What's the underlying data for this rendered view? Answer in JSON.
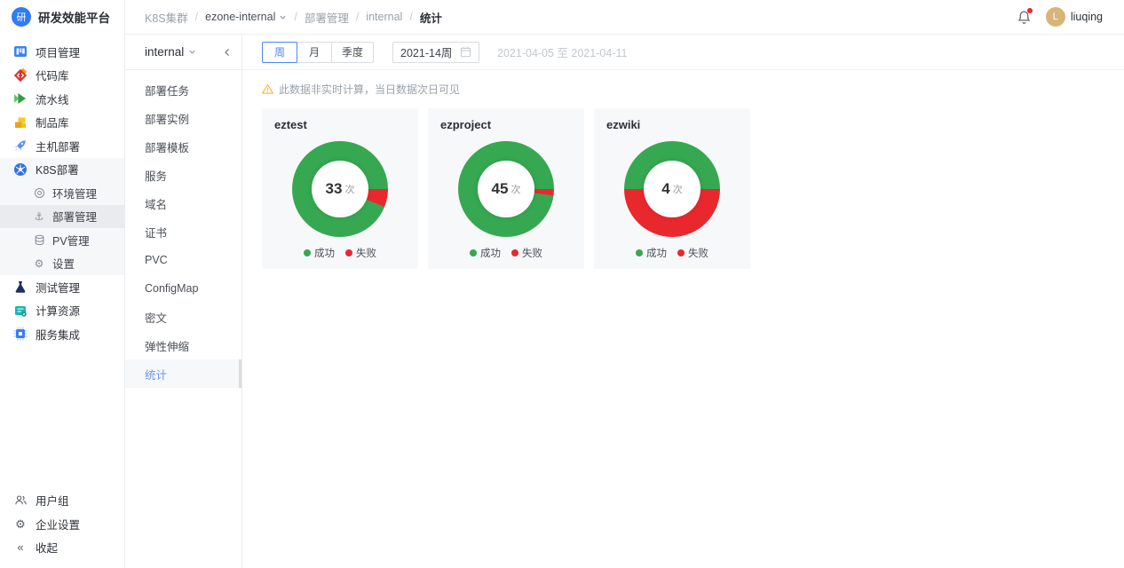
{
  "app": {
    "name": "研发效能平台",
    "logo_char": "研"
  },
  "breadcrumb": {
    "separator": "/",
    "items": [
      "K8S集群",
      "ezone-internal",
      "部署管理",
      "internal",
      "统计"
    ]
  },
  "topbar": {
    "username": "liuqing",
    "avatar_char": "L",
    "bell_has_badge": true
  },
  "sidebar": {
    "items": [
      {
        "label": "项目管理",
        "icon": "kanban-icon"
      },
      {
        "label": "代码库",
        "icon": "code-repo-icon"
      },
      {
        "label": "流水线",
        "icon": "pipeline-icon"
      },
      {
        "label": "制品库",
        "icon": "artifact-icon"
      },
      {
        "label": "主机部署",
        "icon": "host-deploy-icon"
      },
      {
        "label": "K8S部署",
        "icon": "kubernetes-icon"
      },
      {
        "label": "测试管理",
        "icon": "test-flask-icon"
      },
      {
        "label": "计算资源",
        "icon": "compute-icon"
      },
      {
        "label": "服务集成",
        "icon": "integration-icon"
      }
    ],
    "k8s_children": [
      {
        "label": "环境管理",
        "icon": "environment-icon"
      },
      {
        "label": "部署管理",
        "icon": "anchor-icon",
        "selected": true
      },
      {
        "label": "PV管理",
        "icon": "database-icon"
      },
      {
        "label": "设置",
        "icon": "gear-icon"
      }
    ],
    "bottom": [
      {
        "label": "用户组",
        "icon": "user-group-icon"
      },
      {
        "label": "企业设置",
        "icon": "gear-icon"
      },
      {
        "label": "收起",
        "icon": "collapse-icon",
        "glyph": "«"
      }
    ]
  },
  "submenu": {
    "title": "internal",
    "items": [
      "部署任务",
      "部署实例",
      "部署模板",
      "服务",
      "域名",
      "证书",
      "PVC",
      "ConfigMap",
      "密文",
      "弹性伸缩",
      "统计"
    ],
    "selected": "统计"
  },
  "toolbar": {
    "tabs": [
      "周",
      "月",
      "季度"
    ],
    "selected_tab": "周",
    "date_value": "2021-14周",
    "date_range": "2021-04-05 至 2021-04-11"
  },
  "notice": {
    "text": "此数据非实时计算，当日数据次日可见"
  },
  "colors": {
    "accent": "#4a86fa",
    "success": "#36a851",
    "fail": "#e9282e",
    "warning": "#faad14",
    "avatar": "#d7b579",
    "card_bg": "#f7f8fa"
  },
  "chart_data": [
    {
      "type": "pie",
      "title": "eztest",
      "center_value": "33",
      "center_unit": "次",
      "total": 33,
      "series": [
        {
          "name": "成功",
          "value": 31,
          "color": "#36a851"
        },
        {
          "name": "失败",
          "value": 2,
          "color": "#e9282e"
        }
      ],
      "legend": [
        "成功",
        "失败"
      ],
      "legend_position": "bottom",
      "start_angle_deg": 90,
      "donut": true
    },
    {
      "type": "pie",
      "title": "ezproject",
      "center_value": "45",
      "center_unit": "次",
      "total": 45,
      "series": [
        {
          "name": "成功",
          "value": 44,
          "color": "#36a851"
        },
        {
          "name": "失败",
          "value": 1,
          "color": "#e9282e"
        }
      ],
      "legend": [
        "成功",
        "失败"
      ],
      "legend_position": "bottom",
      "start_angle_deg": 90,
      "donut": true
    },
    {
      "type": "pie",
      "title": "ezwiki",
      "center_value": "4",
      "center_unit": "次",
      "total": 4,
      "series": [
        {
          "name": "成功",
          "value": 2,
          "color": "#36a851"
        },
        {
          "name": "失败",
          "value": 2,
          "color": "#e9282e"
        }
      ],
      "legend": [
        "成功",
        "失败"
      ],
      "legend_position": "bottom",
      "start_angle_deg": 90,
      "donut": true
    }
  ]
}
